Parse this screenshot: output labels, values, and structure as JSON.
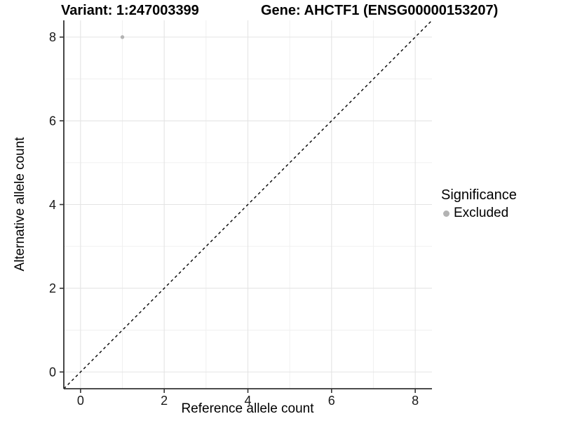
{
  "chart_data": {
    "type": "scatter",
    "title": {
      "left": "Variant: 1:247003399",
      "right": "Gene: AHCTF1 (ENSG00000153207)"
    },
    "xlabel": "Reference allele count",
    "ylabel": "Alternative allele count",
    "xlim": [
      -0.4,
      8.4
    ],
    "ylim": [
      -0.4,
      8.4
    ],
    "x_ticks": [
      0,
      2,
      4,
      6,
      8
    ],
    "y_ticks": [
      0,
      2,
      4,
      6,
      8
    ],
    "x_minor_ticks": [
      1,
      3,
      5,
      7
    ],
    "y_minor_ticks": [
      1,
      3,
      5,
      7
    ],
    "grid": "major+minor",
    "points": [
      {
        "x": 1,
        "y": 8,
        "significance": "Excluded"
      }
    ],
    "reference_line": {
      "style": "dashed",
      "slope": 1,
      "intercept": 0,
      "color": "#000000"
    },
    "legend": {
      "title": "Significance",
      "position": "right",
      "entries": [
        {
          "label": "Excluded",
          "color": "#b3b3b3"
        }
      ]
    },
    "colors": {
      "point": "#b3b3b3",
      "grid_major": "#e4e4e4",
      "grid_minor": "#f0f0f0",
      "axis_line": "#333333",
      "tick_label": "#1a1a1a",
      "background": "#ffffff"
    }
  }
}
